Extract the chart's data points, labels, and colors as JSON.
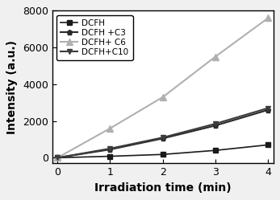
{
  "x": [
    0,
    1,
    2,
    3,
    4
  ],
  "series": [
    {
      "label": "DCFH",
      "y": [
        0,
        80,
        180,
        400,
        700
      ],
      "color": "#1a1a1a",
      "marker": "s",
      "linewidth": 1.2,
      "markersize": 4
    },
    {
      "label": "DCFH +C3",
      "y": [
        0,
        450,
        1050,
        1750,
        2600
      ],
      "color": "#2a2a2a",
      "marker": "p",
      "linewidth": 1.5,
      "markersize": 5
    },
    {
      "label": "DCFH+ C6",
      "y": [
        0,
        1600,
        3300,
        5500,
        7600
      ],
      "color": "#b0b0b0",
      "marker": "^",
      "linewidth": 1.5,
      "markersize": 6
    },
    {
      "label": "DCFH+C10",
      "y": [
        0,
        500,
        1100,
        1850,
        2700
      ],
      "color": "#3c3c3c",
      "marker": "v",
      "linewidth": 1.5,
      "markersize": 5
    }
  ],
  "xlabel": "Irradiation time (min)",
  "ylabel": "Intensity (a.u.)",
  "xlim": [
    -0.1,
    4.1
  ],
  "ylim": [
    -300,
    8000
  ],
  "yticks": [
    0,
    2000,
    4000,
    6000,
    8000
  ],
  "xticks": [
    0,
    1,
    2,
    3,
    4
  ],
  "legend_loc": "upper left",
  "background_color": "#f0f0f0",
  "plot_bg_color": "#ffffff",
  "xlabel_fontsize": 10,
  "ylabel_fontsize": 10,
  "tick_fontsize": 9,
  "legend_fontsize": 7.5
}
